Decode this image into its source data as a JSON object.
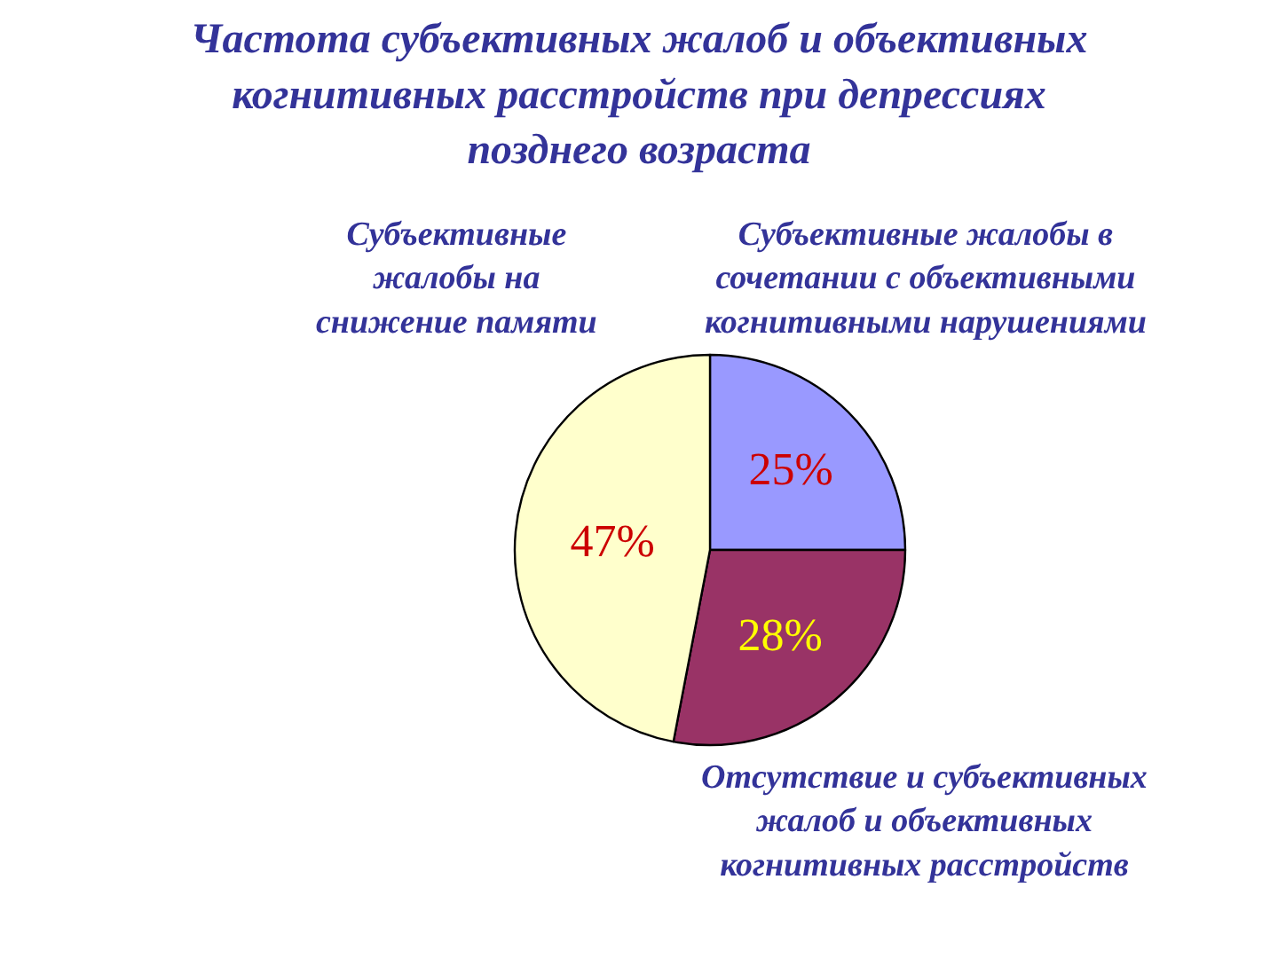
{
  "chart_data": {
    "type": "pie",
    "title": "Частота субъективных жалоб и объективных когнитивных расстройств при депрессиях позднего возраста",
    "categories": [
      "Субъективные жалобы в сочетании с объективными когнитивными нарушениями",
      "Отсутствие и субъективных жалоб и объективных когнитивных расстройств",
      "Субъективные жалобы на снижение памяти"
    ],
    "values": [
      25,
      28,
      47
    ],
    "colors": [
      "#9999ff",
      "#993366",
      "#ffffcc"
    ],
    "value_labels": [
      "25%",
      "28%",
      "47%"
    ]
  }
}
